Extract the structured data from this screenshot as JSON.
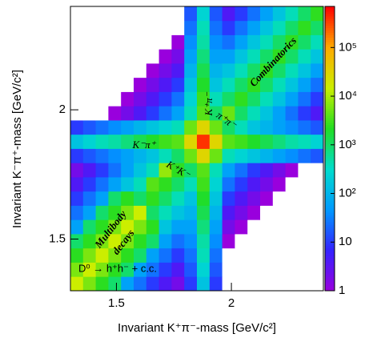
{
  "chart_data": {
    "type": "heatmap",
    "xlabel": "Invariant K⁺π⁻-mass [GeV/c²]",
    "ylabel": "Invariant K⁻π⁺-mass [GeV/c²]",
    "xlim": [
      1.3,
      2.4
    ],
    "ylim": [
      1.3,
      2.4
    ],
    "xticks": [
      1.5,
      2
    ],
    "yticks": [
      1.5,
      2
    ],
    "xbins": [
      1.3,
      1.355,
      1.41,
      1.465,
      1.52,
      1.575,
      1.63,
      1.685,
      1.74,
      1.795,
      1.85,
      1.905,
      1.96,
      2.015,
      2.07,
      2.125,
      2.18,
      2.235,
      2.29,
      2.345,
      2.4
    ],
    "ybins": [
      1.3,
      1.355,
      1.41,
      1.465,
      1.52,
      1.575,
      1.63,
      1.685,
      1.74,
      1.795,
      1.85,
      1.905,
      1.96,
      2.015,
      2.07,
      2.125,
      2.18,
      2.235,
      2.29,
      2.345,
      2.4
    ],
    "z": [
      [
        15000,
        6000,
        2400,
        960,
        60,
        25,
        10,
        4,
        2,
        10,
        150,
        10,
        0,
        0,
        0,
        0,
        0,
        0,
        0,
        0
      ],
      [
        6000,
        15000,
        6000,
        2400,
        960,
        60,
        25,
        10,
        4,
        16,
        250,
        16,
        0,
        0,
        0,
        0,
        0,
        0,
        0,
        0
      ],
      [
        2400,
        6000,
        15000,
        6000,
        2400,
        960,
        60,
        25,
        10,
        25,
        400,
        25,
        0,
        0,
        0,
        0,
        0,
        0,
        0,
        0
      ],
      [
        960,
        2400,
        6000,
        15000,
        6000,
        2400,
        960,
        60,
        25,
        40,
        500,
        40,
        1,
        0,
        0,
        0,
        0,
        0,
        0,
        0
      ],
      [
        60,
        960,
        2400,
        6000,
        15000,
        6000,
        2400,
        160,
        60,
        60,
        800,
        60,
        2,
        1,
        0,
        0,
        0,
        0,
        0,
        0
      ],
      [
        25,
        60,
        960,
        2400,
        6000,
        15000,
        1000,
        400,
        160,
        100,
        1300,
        100,
        4,
        2,
        1,
        0,
        0,
        0,
        0,
        0
      ],
      [
        10,
        25,
        60,
        960,
        2400,
        1000,
        2500,
        1000,
        400,
        160,
        2000,
        160,
        10,
        4,
        2,
        1,
        0,
        0,
        0,
        0
      ],
      [
        4,
        10,
        25,
        60,
        160,
        400,
        4000,
        2500,
        1000,
        400,
        3000,
        250,
        25,
        10,
        4,
        2,
        1,
        0,
        0,
        0
      ],
      [
        2,
        4,
        10,
        25,
        60,
        160,
        400,
        8000,
        2500,
        1000,
        4000,
        400,
        60,
        25,
        10,
        4,
        2,
        1,
        0,
        0
      ],
      [
        10,
        16,
        25,
        40,
        60,
        100,
        160,
        400,
        1000,
        5000,
        30000,
        5000,
        400,
        250,
        160,
        100,
        60,
        40,
        25,
        16
      ],
      [
        150,
        250,
        400,
        500,
        800,
        1300,
        2000,
        3000,
        4000,
        30000,
        400000,
        30000,
        4000,
        3000,
        2000,
        1300,
        800,
        500,
        400,
        250
      ],
      [
        10,
        16,
        25,
        40,
        60,
        100,
        160,
        250,
        400,
        5000,
        30000,
        5000,
        1000,
        400,
        160,
        100,
        60,
        40,
        25,
        16
      ],
      [
        0,
        0,
        0,
        1,
        2,
        4,
        10,
        25,
        60,
        400,
        4000,
        1000,
        5000,
        1000,
        400,
        160,
        60,
        25,
        10,
        4
      ],
      [
        0,
        0,
        0,
        0,
        1,
        2,
        4,
        10,
        25,
        250,
        3000,
        400,
        1000,
        2500,
        1000,
        400,
        160,
        60,
        25,
        10
      ],
      [
        0,
        0,
        0,
        0,
        0,
        1,
        2,
        4,
        10,
        160,
        2000,
        160,
        400,
        1000,
        2500,
        1000,
        400,
        160,
        60,
        25
      ],
      [
        0,
        0,
        0,
        0,
        0,
        0,
        1,
        2,
        4,
        100,
        1300,
        100,
        160,
        400,
        1000,
        2500,
        1000,
        400,
        160,
        60
      ],
      [
        0,
        0,
        0,
        0,
        0,
        0,
        0,
        1,
        2,
        60,
        800,
        60,
        60,
        160,
        400,
        1000,
        2500,
        1000,
        400,
        160
      ],
      [
        0,
        0,
        0,
        0,
        0,
        0,
        0,
        0,
        1,
        40,
        500,
        40,
        25,
        60,
        160,
        400,
        1000,
        2500,
        1000,
        400
      ],
      [
        0,
        0,
        0,
        0,
        0,
        0,
        0,
        0,
        0,
        25,
        400,
        25,
        10,
        25,
        60,
        160,
        400,
        1000,
        2500,
        1000
      ],
      [
        0,
        0,
        0,
        0,
        0,
        0,
        0,
        0,
        0,
        16,
        250,
        16,
        4,
        10,
        25,
        60,
        160,
        400,
        1000,
        2500
      ]
    ],
    "zscale": "log",
    "zlim": [
      1,
      700000
    ],
    "zticks": [
      1,
      10,
      {
        "value": 100,
        "label": "10²"
      },
      {
        "value": 1000,
        "label": "10³"
      },
      {
        "value": 10000,
        "label": "10⁴"
      },
      {
        "value": 100000,
        "label": "10⁵"
      }
    ],
    "colors": [
      "#9900dd",
      "#3322ff",
      "#0099ff",
      "#00ddcc",
      "#22dd22",
      "#ccee00",
      "#ffaa00",
      "#ff0000"
    ],
    "annotations": [
      "Combinatorics",
      "K⁺π⁻",
      "π⁺π⁻",
      "K⁻π⁺",
      "K⁺K⁻",
      "Multibody",
      "decays",
      "D⁰ → h⁺h⁻ + c.c."
    ]
  }
}
